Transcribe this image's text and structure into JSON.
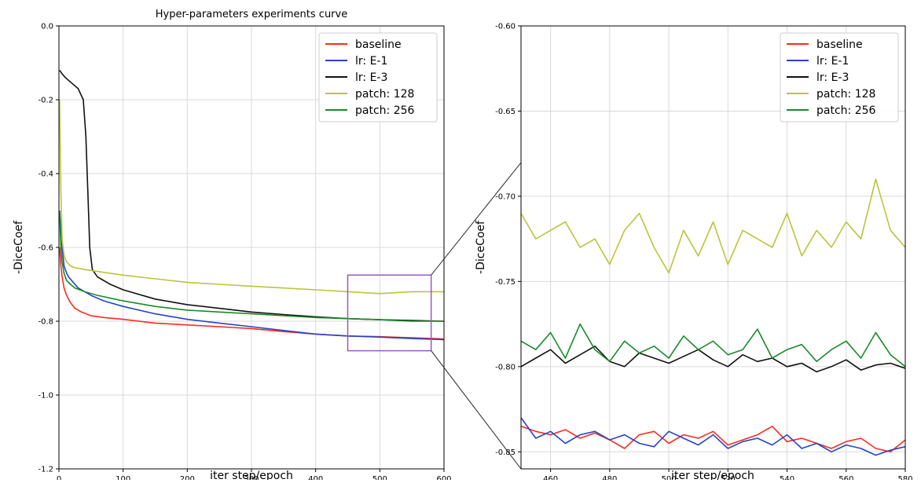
{
  "chart_data": [
    {
      "type": "line",
      "title": "Hyper-parameters experiments curve",
      "xlabel": "iter step/epoch",
      "ylabel": "-DiceCoef",
      "xlim": [
        0,
        600
      ],
      "ylim": [
        -1.2,
        0.0
      ],
      "xticks": [
        "0",
        "100",
        "200",
        "300",
        "400",
        "500",
        "600"
      ],
      "yticks": [
        "0.0",
        "-0.2",
        "-0.4",
        "-0.6",
        "-0.8",
        "-1.0",
        "-1.2"
      ],
      "grid": true,
      "legend_position": "top-right",
      "zoom_box": {
        "x": [
          450,
          580
        ],
        "y": [
          -0.88,
          -0.675
        ],
        "color": "#9b59b6"
      },
      "series": [
        {
          "name": "baseline",
          "color": "#ff2b1c",
          "x": [
            1,
            3,
            5,
            8,
            12,
            18,
            25,
            35,
            50,
            70,
            100,
            150,
            200,
            250,
            300,
            350,
            400,
            450,
            500,
            550,
            600
          ],
          "y": [
            -0.6,
            -0.65,
            -0.68,
            -0.71,
            -0.73,
            -0.75,
            -0.765,
            -0.775,
            -0.785,
            -0.79,
            -0.795,
            -0.805,
            -0.81,
            -0.815,
            -0.82,
            -0.828,
            -0.835,
            -0.84,
            -0.842,
            -0.845,
            -0.848
          ]
        },
        {
          "name": "lr: E-1",
          "color": "#2643c9",
          "x": [
            1,
            3,
            5,
            8,
            12,
            15,
            20,
            30,
            50,
            70,
            100,
            150,
            200,
            250,
            300,
            350,
            400,
            450,
            500,
            550,
            600
          ],
          "y": [
            -0.5,
            -0.55,
            -0.6,
            -0.65,
            -0.67,
            -0.68,
            -0.69,
            -0.71,
            -0.73,
            -0.745,
            -0.76,
            -0.78,
            -0.795,
            -0.805,
            -0.815,
            -0.825,
            -0.835,
            -0.84,
            -0.843,
            -0.847,
            -0.85
          ]
        },
        {
          "name": "lr: E-3",
          "color": "#111111",
          "x": [
            1,
            5,
            10,
            20,
            30,
            38,
            42,
            45,
            48,
            52,
            60,
            80,
            100,
            150,
            200,
            250,
            300,
            350,
            400,
            450,
            500,
            550,
            600
          ],
          "y": [
            -0.12,
            -0.13,
            -0.14,
            -0.155,
            -0.17,
            -0.2,
            -0.3,
            -0.45,
            -0.6,
            -0.66,
            -0.68,
            -0.7,
            -0.715,
            -0.74,
            -0.755,
            -0.765,
            -0.775,
            -0.782,
            -0.788,
            -0.793,
            -0.796,
            -0.798,
            -0.8
          ]
        },
        {
          "name": "patch: 128",
          "color": "#bcc43c",
          "x": [
            1,
            3,
            5,
            8,
            12,
            18,
            25,
            40,
            60,
            100,
            150,
            200,
            250,
            300,
            350,
            400,
            450,
            500,
            550,
            600
          ],
          "y": [
            -0.2,
            -0.45,
            -0.58,
            -0.62,
            -0.64,
            -0.65,
            -0.655,
            -0.66,
            -0.665,
            -0.675,
            -0.685,
            -0.695,
            -0.7,
            -0.705,
            -0.71,
            -0.715,
            -0.72,
            -0.725,
            -0.72,
            -0.72
          ]
        },
        {
          "name": "patch: 256",
          "color": "#1a8a2a",
          "x": [
            1,
            3,
            5,
            8,
            12,
            18,
            25,
            40,
            60,
            100,
            150,
            200,
            250,
            300,
            350,
            400,
            450,
            500,
            550,
            600
          ],
          "y": [
            -0.5,
            -0.6,
            -0.64,
            -0.67,
            -0.69,
            -0.7,
            -0.71,
            -0.72,
            -0.73,
            -0.745,
            -0.76,
            -0.77,
            -0.775,
            -0.78,
            -0.785,
            -0.79,
            -0.793,
            -0.796,
            -0.8,
            -0.8
          ]
        }
      ]
    },
    {
      "type": "line",
      "title": "",
      "xlabel": "iter step/epoch",
      "ylabel": "-DiceCoef",
      "xlim": [
        450,
        580
      ],
      "ylim": [
        -0.86,
        -0.6
      ],
      "xticks": [
        "460",
        "480",
        "500",
        "520",
        "540",
        "560",
        "580"
      ],
      "yticks": [
        "-0.60",
        "-0.65",
        "-0.70",
        "-0.75",
        "-0.80",
        "-0.85"
      ],
      "grid": true,
      "legend_position": "top-right",
      "series": [
        {
          "name": "baseline",
          "color": "#ff2b1c",
          "x": [
            450,
            455,
            460,
            465,
            470,
            475,
            480,
            485,
            490,
            495,
            500,
            505,
            510,
            515,
            520,
            525,
            530,
            535,
            540,
            545,
            550,
            555,
            560,
            565,
            570,
            575,
            580
          ],
          "y": [
            -0.835,
            -0.838,
            -0.84,
            -0.837,
            -0.842,
            -0.839,
            -0.843,
            -0.848,
            -0.84,
            -0.838,
            -0.845,
            -0.84,
            -0.842,
            -0.838,
            -0.846,
            -0.843,
            -0.84,
            -0.835,
            -0.844,
            -0.842,
            -0.845,
            -0.848,
            -0.844,
            -0.842,
            -0.848,
            -0.85,
            -0.843
          ]
        },
        {
          "name": "lr: E-1",
          "color": "#2643c9",
          "x": [
            450,
            455,
            460,
            465,
            470,
            475,
            480,
            485,
            490,
            495,
            500,
            505,
            510,
            515,
            520,
            525,
            530,
            535,
            540,
            545,
            550,
            555,
            560,
            565,
            570,
            575,
            580
          ],
          "y": [
            -0.83,
            -0.842,
            -0.838,
            -0.845,
            -0.84,
            -0.838,
            -0.843,
            -0.84,
            -0.845,
            -0.847,
            -0.838,
            -0.842,
            -0.846,
            -0.84,
            -0.848,
            -0.844,
            -0.842,
            -0.846,
            -0.84,
            -0.848,
            -0.845,
            -0.85,
            -0.846,
            -0.848,
            -0.852,
            -0.849,
            -0.847
          ]
        },
        {
          "name": "lr: E-3",
          "color": "#111111",
          "x": [
            450,
            455,
            460,
            465,
            470,
            475,
            480,
            485,
            490,
            495,
            500,
            505,
            510,
            515,
            520,
            525,
            530,
            535,
            540,
            545,
            550,
            555,
            560,
            565,
            570,
            575,
            580
          ],
          "y": [
            -0.8,
            -0.795,
            -0.79,
            -0.798,
            -0.793,
            -0.788,
            -0.797,
            -0.8,
            -0.792,
            -0.795,
            -0.798,
            -0.794,
            -0.79,
            -0.796,
            -0.8,
            -0.793,
            -0.797,
            -0.795,
            -0.8,
            -0.798,
            -0.803,
            -0.8,
            -0.796,
            -0.802,
            -0.799,
            -0.798,
            -0.801
          ]
        },
        {
          "name": "patch: 128",
          "color": "#bcc43c",
          "x": [
            450,
            455,
            460,
            465,
            470,
            475,
            480,
            485,
            490,
            495,
            500,
            505,
            510,
            515,
            520,
            525,
            530,
            535,
            540,
            545,
            550,
            555,
            560,
            565,
            570,
            575,
            580
          ],
          "y": [
            -0.71,
            -0.725,
            -0.72,
            -0.715,
            -0.73,
            -0.725,
            -0.74,
            -0.72,
            -0.71,
            -0.73,
            -0.745,
            -0.72,
            -0.735,
            -0.715,
            -0.74,
            -0.72,
            -0.725,
            -0.73,
            -0.71,
            -0.735,
            -0.72,
            -0.73,
            -0.715,
            -0.725,
            -0.69,
            -0.72,
            -0.73
          ]
        },
        {
          "name": "patch: 256",
          "color": "#1a8a2a",
          "x": [
            450,
            455,
            460,
            465,
            470,
            475,
            480,
            485,
            490,
            495,
            500,
            505,
            510,
            515,
            520,
            525,
            530,
            535,
            540,
            545,
            550,
            555,
            560,
            565,
            570,
            575,
            580
          ],
          "y": [
            -0.785,
            -0.79,
            -0.78,
            -0.795,
            -0.775,
            -0.79,
            -0.797,
            -0.785,
            -0.792,
            -0.788,
            -0.795,
            -0.782,
            -0.79,
            -0.785,
            -0.793,
            -0.79,
            -0.778,
            -0.795,
            -0.79,
            -0.787,
            -0.797,
            -0.79,
            -0.785,
            -0.795,
            -0.78,
            -0.793,
            -0.8
          ]
        }
      ]
    }
  ]
}
